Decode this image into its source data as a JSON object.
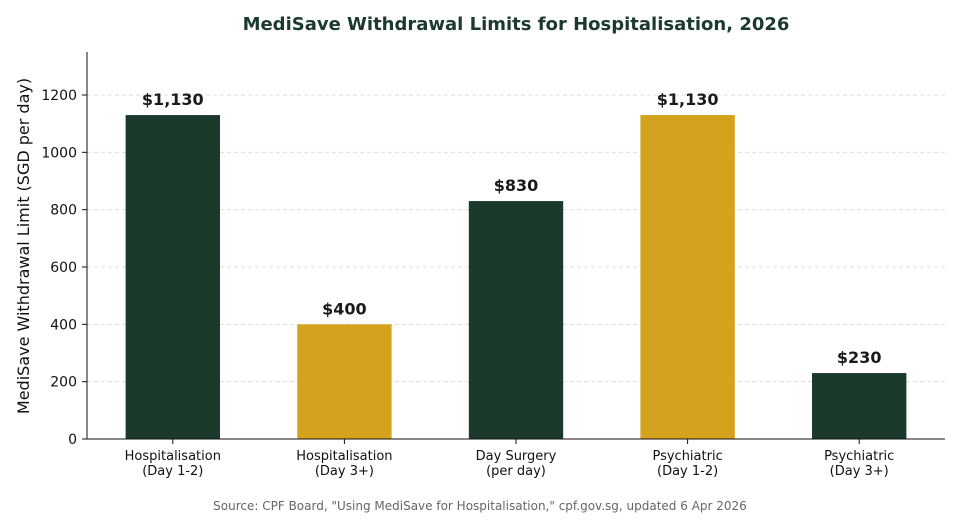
{
  "chart_data": {
    "type": "bar",
    "title": "MediSave Withdrawal Limits for Hospitalisation, 2026",
    "xlabel": "",
    "ylabel": "MediSave Withdrawal Limit (SGD per day)",
    "categories": [
      [
        "Hospitalisation",
        "(Day 1-2)"
      ],
      [
        "Hospitalisation",
        "(Day 3+)"
      ],
      [
        "Day Surgery",
        "(per day)"
      ],
      [
        "Psychiatric",
        "(Day 1-2)"
      ],
      [
        "Psychiatric",
        "(Day 3+)"
      ]
    ],
    "values": [
      1130,
      400,
      830,
      1130,
      230
    ],
    "value_labels": [
      "$1,130",
      "$400",
      "$830",
      "$1,130",
      "$230"
    ],
    "bar_colors": [
      "#1b3a2b",
      "#d4a21c",
      "#1b3a2b",
      "#d4a21c",
      "#1b3a2b"
    ],
    "ylim": [
      0,
      1350
    ],
    "yticks": [
      0,
      200,
      400,
      600,
      800,
      1000,
      1200
    ],
    "grid": true,
    "legend": "none",
    "title_color": "#1b3a2b",
    "source": "Source: CPF Board, \"Using MediSave for Hospitalisation,\" cpf.gov.sg, updated 6 Apr 2026"
  }
}
